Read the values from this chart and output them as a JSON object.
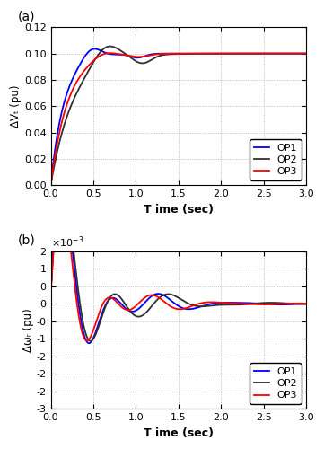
{
  "title_a": "(a)",
  "title_b": "(b)",
  "xlabel": "T ime (sec)",
  "ylabel_a": "ΔVₜ (pu)",
  "ylabel_b": "Δωᵣ (pu)",
  "xlim": [
    0,
    3
  ],
  "ylim_a": [
    0,
    0.12
  ],
  "ylim_b_raw": [
    -3,
    1.5
  ],
  "xticks": [
    0,
    0.5,
    1,
    1.5,
    2,
    2.5,
    3
  ],
  "yticks_a": [
    0,
    0.02,
    0.04,
    0.06,
    0.08,
    0.1,
    0.12
  ],
  "yticks_b_raw": [
    -3,
    -2.5,
    -2,
    -1.5,
    -1,
    -0.5,
    0,
    0.5,
    1,
    1.5
  ],
  "colors": {
    "OP1": "#0000ff",
    "OP2": "#303030",
    "OP3": "#ff0000"
  },
  "background_color": "#ffffff",
  "grid_color": "#aaaaaa",
  "linewidth": 1.3
}
